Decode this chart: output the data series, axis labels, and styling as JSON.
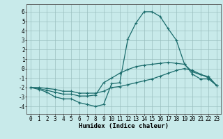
{
  "xlabel": "Humidex (Indice chaleur)",
  "bg_color": "#c8eaea",
  "grid_color": "#9bbfbf",
  "line_color": "#1a6b6b",
  "x": [
    0,
    1,
    2,
    3,
    4,
    5,
    6,
    7,
    8,
    9,
    10,
    11,
    12,
    13,
    14,
    15,
    16,
    17,
    18,
    19,
    20,
    21,
    22,
    23
  ],
  "line1": [
    -2.0,
    -2.2,
    -2.5,
    -3.0,
    -3.2,
    -3.2,
    -3.6,
    -3.8,
    -4.0,
    -3.8,
    -1.6,
    -1.5,
    3.1,
    4.8,
    6.0,
    6.0,
    5.5,
    4.2,
    3.0,
    0.5,
    -0.6,
    -1.1,
    -1.1,
    -1.8
  ],
  "line2": [
    -2.0,
    -2.1,
    -2.3,
    -2.5,
    -2.7,
    -2.7,
    -2.9,
    -2.9,
    -2.8,
    -1.5,
    -1.0,
    -0.5,
    -0.1,
    0.2,
    0.35,
    0.45,
    0.55,
    0.65,
    0.55,
    0.45,
    -0.35,
    -0.65,
    -0.85,
    -1.8
  ],
  "line3": [
    -2.0,
    -2.0,
    -2.1,
    -2.2,
    -2.4,
    -2.4,
    -2.6,
    -2.6,
    -2.6,
    -2.4,
    -2.0,
    -1.9,
    -1.7,
    -1.5,
    -1.3,
    -1.1,
    -0.8,
    -0.5,
    -0.2,
    0.0,
    -0.2,
    -0.6,
    -1.0,
    -1.8
  ],
  "ylim": [
    -4.8,
    6.8
  ],
  "xlim": [
    -0.5,
    23.5
  ],
  "yticks": [
    -4,
    -3,
    -2,
    -1,
    0,
    1,
    2,
    3,
    4,
    5,
    6
  ],
  "xticks": [
    0,
    1,
    2,
    3,
    4,
    5,
    6,
    7,
    8,
    9,
    10,
    11,
    12,
    13,
    14,
    15,
    16,
    17,
    18,
    19,
    20,
    21,
    22,
    23
  ]
}
